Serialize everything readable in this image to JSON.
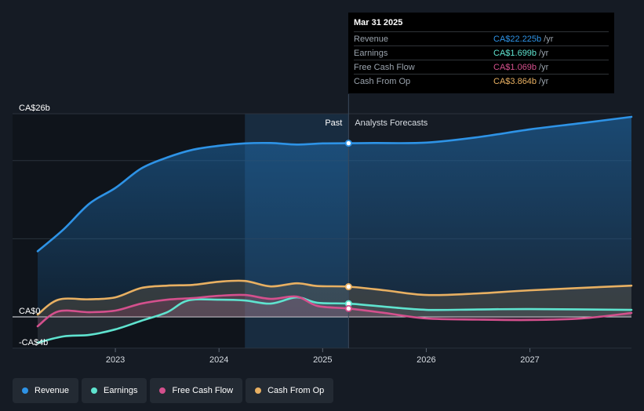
{
  "chart_data": {
    "type": "area",
    "title": "",
    "y_axis": {
      "unit_prefix": "CA$",
      "labels": [
        "CA$26b",
        "CA$0",
        "-CA$4b"
      ],
      "ylim": [
        -4,
        26
      ]
    },
    "x_axis": {
      "ticks": [
        "2023",
        "2024",
        "2025",
        "2026",
        "2027"
      ],
      "xlim": [
        2022.25,
        2027.98
      ]
    },
    "region_labels": {
      "past": "Past",
      "forecast": "Analysts Forecasts"
    },
    "divider_x": 2025.25,
    "highlight_band": [
      2024.25,
      2025.25
    ],
    "series": [
      {
        "name": "Revenue",
        "color": "#2e93e6",
        "points": [
          [
            2022.25,
            8.4
          ],
          [
            2022.5,
            11.2
          ],
          [
            2022.75,
            14.5
          ],
          [
            2023.0,
            16.5
          ],
          [
            2023.25,
            19.0
          ],
          [
            2023.5,
            20.4
          ],
          [
            2023.75,
            21.4
          ],
          [
            2024.0,
            21.9
          ],
          [
            2024.25,
            22.2
          ],
          [
            2024.5,
            22.25
          ],
          [
            2024.75,
            22.05
          ],
          [
            2025.0,
            22.2
          ],
          [
            2025.25,
            22.225
          ],
          [
            2025.5,
            22.25
          ],
          [
            2026.0,
            22.3
          ],
          [
            2026.5,
            23.0
          ],
          [
            2027.0,
            24.0
          ],
          [
            2027.5,
            24.8
          ],
          [
            2027.98,
            25.6
          ]
        ]
      },
      {
        "name": "Earnings",
        "color": "#5fe3cf",
        "points": [
          [
            2022.25,
            -3.3
          ],
          [
            2022.5,
            -2.5
          ],
          [
            2022.75,
            -2.3
          ],
          [
            2023.0,
            -1.6
          ],
          [
            2023.25,
            -0.5
          ],
          [
            2023.5,
            0.6
          ],
          [
            2023.7,
            2.1
          ],
          [
            2024.0,
            2.2
          ],
          [
            2024.25,
            2.1
          ],
          [
            2024.5,
            1.7
          ],
          [
            2024.75,
            2.5
          ],
          [
            2024.95,
            1.8
          ],
          [
            2025.25,
            1.699
          ],
          [
            2025.6,
            1.3
          ],
          [
            2026.0,
            0.9
          ],
          [
            2026.5,
            0.95
          ],
          [
            2027.0,
            1.0
          ],
          [
            2027.98,
            0.9
          ]
        ]
      },
      {
        "name": "Free Cash Flow",
        "color": "#d4508d",
        "points": [
          [
            2022.25,
            -1.2
          ],
          [
            2022.45,
            0.7
          ],
          [
            2022.75,
            0.6
          ],
          [
            2023.0,
            0.8
          ],
          [
            2023.25,
            1.7
          ],
          [
            2023.5,
            2.2
          ],
          [
            2023.75,
            2.4
          ],
          [
            2024.0,
            2.7
          ],
          [
            2024.25,
            2.8
          ],
          [
            2024.5,
            2.3
          ],
          [
            2024.75,
            2.6
          ],
          [
            2024.95,
            1.4
          ],
          [
            2025.25,
            1.069
          ],
          [
            2025.6,
            0.5
          ],
          [
            2026.0,
            -0.2
          ],
          [
            2026.5,
            -0.35
          ],
          [
            2027.0,
            -0.4
          ],
          [
            2027.5,
            -0.2
          ],
          [
            2027.98,
            0.5
          ]
        ]
      },
      {
        "name": "Cash From Op",
        "color": "#e8b062",
        "points": [
          [
            2022.25,
            0.3
          ],
          [
            2022.45,
            2.2
          ],
          [
            2022.75,
            2.25
          ],
          [
            2023.0,
            2.5
          ],
          [
            2023.25,
            3.7
          ],
          [
            2023.5,
            4.0
          ],
          [
            2023.75,
            4.1
          ],
          [
            2024.0,
            4.5
          ],
          [
            2024.25,
            4.6
          ],
          [
            2024.5,
            3.9
          ],
          [
            2024.75,
            4.3
          ],
          [
            2024.95,
            3.95
          ],
          [
            2025.25,
            3.864
          ],
          [
            2025.6,
            3.4
          ],
          [
            2026.0,
            2.8
          ],
          [
            2026.5,
            3.0
          ],
          [
            2027.0,
            3.4
          ],
          [
            2027.98,
            4.0
          ]
        ]
      }
    ]
  },
  "tooltip": {
    "date": "Mar 31 2025",
    "rows": [
      {
        "label": "Revenue",
        "value": "CA$22.225b",
        "unit": "/yr",
        "color": "#2e93e6"
      },
      {
        "label": "Earnings",
        "value": "CA$1.699b",
        "unit": "/yr",
        "color": "#5fe3cf"
      },
      {
        "label": "Free Cash Flow",
        "value": "CA$1.069b",
        "unit": "/yr",
        "color": "#d4508d"
      },
      {
        "label": "Cash From Op",
        "value": "CA$3.864b",
        "unit": "/yr",
        "color": "#e8b062"
      }
    ]
  },
  "legend": [
    {
      "label": "Revenue",
      "color": "#2e93e6"
    },
    {
      "label": "Earnings",
      "color": "#5fe3cf"
    },
    {
      "label": "Free Cash Flow",
      "color": "#d4508d"
    },
    {
      "label": "Cash From Op",
      "color": "#e8b062"
    }
  ]
}
